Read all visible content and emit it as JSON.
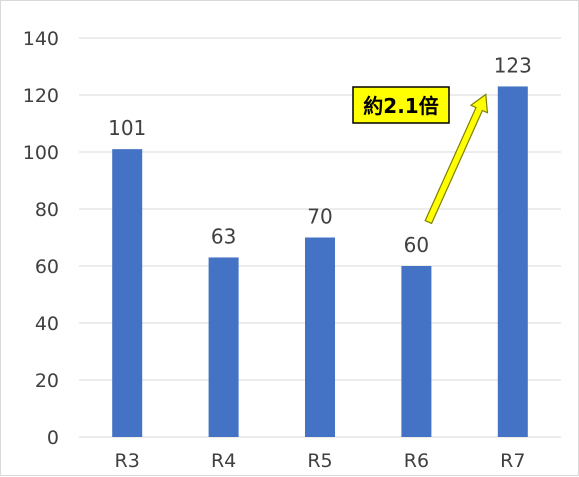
{
  "chart_data": {
    "type": "bar",
    "categories": [
      "R3",
      "R4",
      "R5",
      "R6",
      "R7"
    ],
    "values": [
      101,
      63,
      70,
      60,
      123
    ],
    "data_labels": [
      "101",
      "63",
      "70",
      "60",
      "123"
    ],
    "title": "",
    "xlabel": "",
    "ylabel": "",
    "ylim": [
      0,
      140
    ],
    "yticks": [
      0,
      20,
      40,
      60,
      80,
      100,
      120,
      140
    ],
    "grid": true,
    "legend": "none",
    "bar_color": "#4472c4",
    "annotation": {
      "text": "約2.1倍",
      "arrow_from_category": "R6",
      "arrow_to_category": "R7",
      "box_color": "#ffff00",
      "arrow_color": "#ffff00"
    }
  }
}
